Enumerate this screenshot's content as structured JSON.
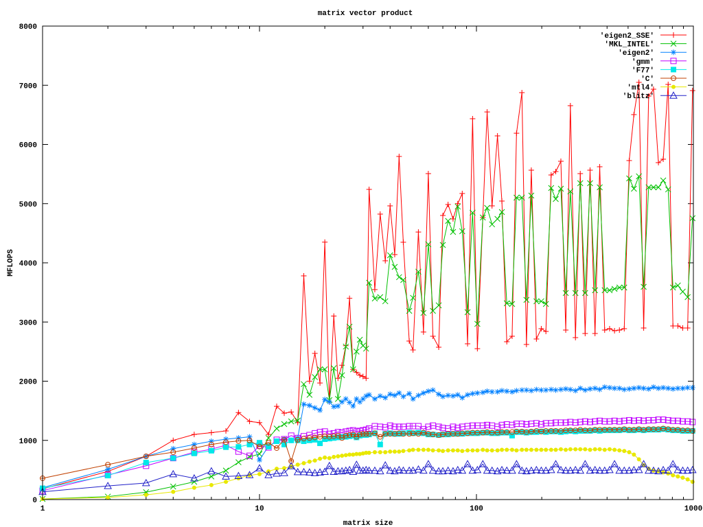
{
  "chart_data": {
    "type": "line",
    "title": "matrix vector product",
    "xlabel": "matrix size",
    "ylabel": "MFLOPS",
    "xscale": "log",
    "xlim": [
      1,
      1000
    ],
    "ylim": [
      0,
      8000
    ],
    "xticks": [
      "1",
      "10",
      "100",
      "1000"
    ],
    "yticks": [
      "0",
      "1000",
      "2000",
      "3000",
      "4000",
      "5000",
      "6000",
      "7000",
      "8000"
    ],
    "grid": false,
    "legend_position": "top-right",
    "x": [
      1,
      2,
      3,
      4,
      5,
      6,
      7,
      8,
      9,
      10,
      11,
      12,
      13,
      14,
      15,
      16,
      17,
      18,
      19,
      20,
      21,
      22,
      23,
      24,
      25,
      26,
      27,
      28,
      29,
      30,
      31,
      32,
      34,
      36,
      38,
      40,
      42,
      44,
      46,
      49,
      51,
      54,
      57,
      60,
      63,
      67,
      70,
      74,
      78,
      82,
      86,
      91,
      96,
      101,
      107,
      112,
      118,
      125,
      131,
      138,
      146,
      153,
      162,
      170,
      179,
      189,
      199,
      209,
      221,
      232,
      245,
      258,
      271,
      286,
      301,
      317,
      334,
      352,
      370,
      390,
      411,
      433,
      456,
      480,
      506,
      532,
      561,
      590,
      622,
      655,
      690,
      726,
      765,
      805,
      848,
      893,
      941,
      991
    ],
    "series": [
      {
        "name": "'eigen2_SSE'",
        "color": "#ff0000",
        "marker": "plus",
        "values": [
          180,
          475,
          730,
          1000,
          1100,
          1130,
          1160,
          1470,
          1320,
          1300,
          1100,
          1575,
          1460,
          1480,
          1300,
          3780,
          2000,
          2470,
          1970,
          4350,
          1650,
          3100,
          2050,
          2270,
          2600,
          3400,
          2200,
          2150,
          2100,
          2080,
          2050,
          5240,
          3548,
          4823,
          4035,
          4962,
          4139,
          5797,
          4348,
          2678,
          2527,
          4520,
          2830,
          5507,
          2760,
          2574,
          4800,
          4986,
          4742,
          5000,
          5171,
          2632,
          6435,
          2550,
          4765,
          6550,
          4962,
          6145,
          5043,
          2667,
          2760,
          6190,
          6875,
          2620,
          5565,
          2713,
          2887,
          2840,
          5484,
          5542,
          5716,
          2864,
          6655,
          2736,
          5507,
          2806,
          5565,
          2806,
          5623,
          2864,
          2887,
          2852,
          2864,
          2887,
          5727,
          6504,
          7050,
          2899,
          6817,
          6933,
          5693,
          5751,
          7014,
          2933,
          2933,
          2899,
          2899,
          6910
        ]
      },
      {
        "name": "'MKL_INTEL'",
        "color": "#00c000",
        "marker": "cross",
        "values": [
          10,
          50,
          125,
          220,
          300,
          390,
          490,
          630,
          720,
          770,
          1040,
          1200,
          1275,
          1320,
          1335,
          1950,
          1770,
          2070,
          2200,
          2200,
          1680,
          2220,
          1700,
          2100,
          2585,
          2920,
          2200,
          2500,
          2700,
          2600,
          2550,
          3664,
          3397,
          3420,
          3350,
          4128,
          3930,
          3757,
          3710,
          3188,
          3408,
          3850,
          3153,
          4313,
          3188,
          3281,
          4301,
          4707,
          4522,
          4950,
          4533,
          3165,
          4846,
          2968,
          4765,
          4928,
          4650,
          4742,
          4858,
          3316,
          3304,
          5101,
          5101,
          3374,
          5136,
          3350,
          3350,
          3304,
          5264,
          5078,
          5252,
          3490,
          5206,
          3490,
          5345,
          3490,
          5345,
          3536,
          5275,
          3536,
          3536,
          3559,
          3583,
          3583,
          5426,
          5252,
          5461,
          3594,
          5275,
          5275,
          5275,
          5391,
          5240,
          3583,
          3617,
          3513,
          3420,
          4754
        ]
      },
      {
        "name": "'eigen2'",
        "color": "#0080ff",
        "marker": "star",
        "values": [
          200,
          510,
          730,
          860,
          930,
          985,
          1020,
          1040,
          1060,
          670,
          900,
          985,
          1020,
          1000,
          1040,
          1610,
          1590,
          1550,
          1510,
          1690,
          1650,
          1570,
          1580,
          1650,
          1700,
          1640,
          1580,
          1700,
          1650,
          1700,
          1750,
          1770,
          1700,
          1750,
          1720,
          1780,
          1760,
          1800,
          1740,
          1790,
          1700,
          1760,
          1800,
          1830,
          1850,
          1780,
          1740,
          1760,
          1750,
          1770,
          1720,
          1770,
          1790,
          1800,
          1810,
          1830,
          1820,
          1820,
          1840,
          1830,
          1820,
          1840,
          1850,
          1850,
          1840,
          1860,
          1850,
          1850,
          1860,
          1850,
          1860,
          1870,
          1860,
          1840,
          1880,
          1850,
          1870,
          1880,
          1860,
          1900,
          1890,
          1880,
          1880,
          1860,
          1870,
          1880,
          1890,
          1880,
          1870,
          1900,
          1880,
          1890,
          1880,
          1870,
          1880,
          1880,
          1890,
          1890
        ]
      },
      {
        "name": "'gmm'",
        "color": "#c000ff",
        "marker": "open-square",
        "values": [
          150,
          415,
          570,
          700,
          800,
          850,
          920,
          810,
          740,
          910,
          880,
          1010,
          1020,
          1080,
          1040,
          1070,
          1090,
          1120,
          1140,
          1150,
          1110,
          1120,
          1140,
          1130,
          1150,
          1160,
          1170,
          1150,
          1160,
          1170,
          1180,
          1200,
          1240,
          1230,
          1220,
          1250,
          1230,
          1230,
          1230,
          1240,
          1240,
          1240,
          1190,
          1230,
          1250,
          1230,
          1210,
          1200,
          1230,
          1210,
          1230,
          1240,
          1250,
          1250,
          1250,
          1260,
          1250,
          1230,
          1260,
          1270,
          1260,
          1280,
          1280,
          1270,
          1280,
          1290,
          1270,
          1290,
          1290,
          1300,
          1300,
          1300,
          1310,
          1300,
          1310,
          1320,
          1310,
          1320,
          1330,
          1320,
          1320,
          1330,
          1320,
          1330,
          1340,
          1330,
          1340,
          1330,
          1340,
          1340,
          1350,
          1350,
          1340,
          1330,
          1330,
          1320,
          1320,
          1310
        ]
      },
      {
        "name": "'F77'",
        "color": "#00e8e8",
        "marker": "filled-square",
        "values": [
          190,
          405,
          625,
          700,
          780,
          825,
          885,
          890,
          930,
          960,
          895,
          985,
          930,
          1000,
          1000,
          985,
          1000,
          1010,
          950,
          1020,
          1030,
          1040,
          1050,
          1060,
          1060,
          1070,
          1080,
          1050,
          1080,
          1090,
          1090,
          1100,
          1120,
          930,
          1110,
          1120,
          1110,
          1110,
          1120,
          1130,
          1120,
          1130,
          1120,
          1100,
          1100,
          1090,
          1100,
          1100,
          1110,
          1110,
          1110,
          1120,
          1120,
          1120,
          1130,
          1130,
          1120,
          1120,
          1130,
          1130,
          1080,
          1140,
          1140,
          1130,
          1140,
          1140,
          1150,
          1140,
          1150,
          1150,
          1140,
          1150,
          1160,
          1150,
          1160,
          1160,
          1160,
          1170,
          1160,
          1170,
          1170,
          1170,
          1170,
          1180,
          1170,
          1170,
          1180,
          1170,
          1180,
          1180,
          1180,
          1190,
          1180,
          1170,
          1170,
          1160,
          1160,
          1160
        ]
      },
      {
        "name": "'C'",
        "color": "#c04000",
        "marker": "open-circle",
        "values": [
          360,
          590,
          730,
          800,
          870,
          930,
          970,
          990,
          1000,
          895,
          960,
          870,
          1010,
          650,
          1010,
          1030,
          1040,
          1050,
          1060,
          1070,
          1060,
          1070,
          1080,
          1040,
          1080,
          1090,
          1100,
          1060,
          1100,
          1110,
          1110,
          1110,
          1120,
          1060,
          1110,
          1110,
          1110,
          1120,
          1110,
          1110,
          1120,
          1110,
          1130,
          1110,
          1100,
          1090,
          1100,
          1110,
          1110,
          1110,
          1120,
          1120,
          1130,
          1130,
          1130,
          1140,
          1130,
          1130,
          1140,
          1140,
          1140,
          1150,
          1150,
          1140,
          1150,
          1160,
          1150,
          1160,
          1160,
          1160,
          1160,
          1170,
          1170,
          1170,
          1180,
          1170,
          1170,
          1180,
          1180,
          1180,
          1180,
          1180,
          1180,
          1190,
          1180,
          1180,
          1190,
          1180,
          1190,
          1190,
          1190,
          1200,
          1190,
          1180,
          1180,
          1170,
          1170,
          1160
        ]
      },
      {
        "name": "'mtl4'",
        "color": "#e8e800",
        "marker": "filled-circle",
        "values": [
          10,
          35,
          80,
          130,
          200,
          245,
          300,
          360,
          410,
          430,
          475,
          520,
          530,
          560,
          590,
          615,
          640,
          660,
          690,
          710,
          700,
          720,
          730,
          740,
          750,
          760,
          760,
          770,
          770,
          780,
          790,
          790,
          800,
          800,
          800,
          810,
          810,
          810,
          820,
          830,
          840,
          840,
          840,
          840,
          830,
          830,
          820,
          830,
          830,
          830,
          820,
          830,
          830,
          830,
          840,
          830,
          830,
          830,
          840,
          840,
          840,
          830,
          840,
          840,
          840,
          840,
          840,
          840,
          840,
          840,
          850,
          840,
          850,
          850,
          850,
          850,
          840,
          850,
          850,
          840,
          850,
          840,
          830,
          820,
          800,
          760,
          680,
          580,
          520,
          490,
          480,
          460,
          440,
          410,
          390,
          370,
          340,
          300
        ]
      },
      {
        "name": "'blitz'",
        "color": "#2020c8",
        "marker": "open-triangle",
        "values": [
          130,
          230,
          280,
          430,
          360,
          480,
          390,
          400,
          415,
          530,
          415,
          440,
          450,
          565,
          465,
          465,
          460,
          450,
          460,
          470,
          570,
          470,
          480,
          480,
          490,
          500,
          470,
          590,
          490,
          490,
          500,
          490,
          490,
          480,
          580,
          490,
          480,
          500,
          490,
          490,
          490,
          510,
          490,
          600,
          490,
          480,
          480,
          490,
          480,
          500,
          490,
          600,
          490,
          500,
          600,
          490,
          490,
          480,
          500,
          490,
          490,
          600,
          490,
          480,
          490,
          500,
          490,
          490,
          500,
          600,
          500,
          490,
          490,
          500,
          490,
          600,
          490,
          500,
          490,
          490,
          500,
          600,
          490,
          490,
          490,
          500,
          500,
          600,
          490,
          490,
          480,
          500,
          490,
          600,
          500,
          490,
          490,
          500
        ]
      }
    ]
  }
}
